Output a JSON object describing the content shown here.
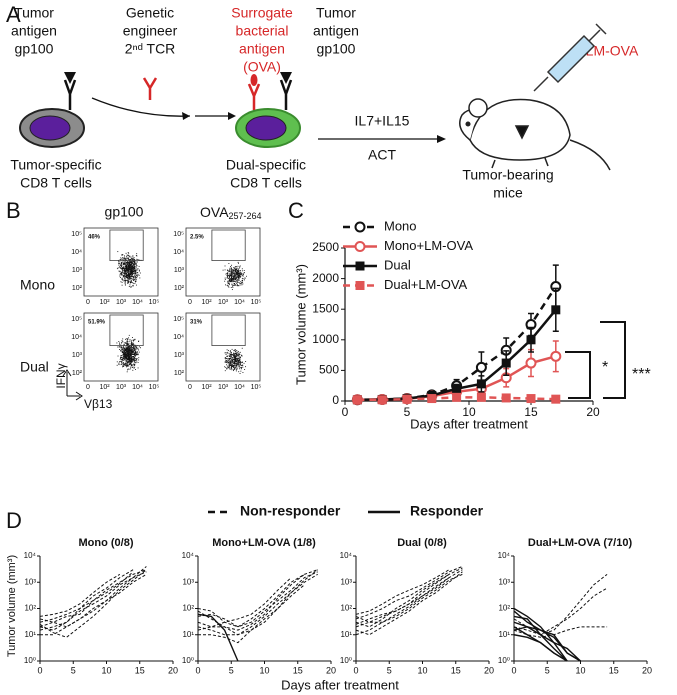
{
  "panel_labels": [
    "A",
    "B",
    "C",
    "D"
  ],
  "diagram": {
    "left_antigen": [
      "Tumor",
      "antigen",
      "gp100"
    ],
    "engineer": [
      "Genetic",
      "engineer",
      "2ⁿᵈ TCR"
    ],
    "surrogate": [
      "Surrogate",
      "bacterial",
      "antigen",
      "(OVA)"
    ],
    "right_antigen": [
      "Tumor",
      "antigen",
      "gp100"
    ],
    "injection": "LM-OVA",
    "cytokines": "IL7+IL15",
    "transfer": "ACT",
    "left_cell": [
      "Tumor-specific",
      "CD8 T cells"
    ],
    "right_cell": [
      "Dual-specific",
      "CD8 T cells"
    ],
    "host": [
      "Tumor-bearing",
      "mice"
    ]
  },
  "flow": {
    "columns": [
      "gp100",
      {
        "main": "OVA",
        "sub": "257-264"
      }
    ],
    "rows": [
      "Mono",
      "Dual"
    ],
    "percentages": [
      [
        "46%",
        "2.5%"
      ],
      [
        "51.9%",
        "31%"
      ]
    ],
    "y_label": "IFNγ",
    "x_label": "Vβ13",
    "yticks": [
      "10²",
      "10³",
      "10⁴",
      "10⁵"
    ],
    "xticks": [
      "0",
      "10²",
      "10³",
      "10⁴",
      "10⁵"
    ]
  },
  "responder_legend": [
    "Non-responder",
    "Responder"
  ],
  "d_axes": {
    "xlabel": "Days after treatment",
    "ylabel": "Tumor volume (mm³)"
  },
  "chart_data": [
    {
      "type": "line",
      "xlabel": "Days after treatment",
      "ylabel": "Tumor volume (mm³)",
      "x": [
        1,
        3,
        5,
        7,
        9,
        11,
        13,
        15,
        17
      ],
      "xlim": [
        0,
        20
      ],
      "xticks": [
        0,
        5,
        10,
        15,
        20
      ],
      "ylim": [
        0,
        2500
      ],
      "yticks": [
        0,
        500,
        1000,
        1500,
        2000,
        2500
      ],
      "annotations": [
        "*",
        "***"
      ],
      "series": [
        {
          "name": "Mono",
          "color": "#111111",
          "dashed": true,
          "marker": "open-circle",
          "values": [
            20,
            25,
            40,
            100,
            250,
            550,
            830,
            1250,
            1870
          ],
          "errors": [
            10,
            10,
            20,
            40,
            100,
            250,
            200,
            180,
            350
          ]
        },
        {
          "name": "Mono+LM-OVA",
          "color": "#e05555",
          "dashed": false,
          "marker": "open-circle",
          "values": [
            20,
            25,
            35,
            80,
            150,
            200,
            380,
            620,
            730
          ],
          "errors": [
            5,
            10,
            15,
            30,
            60,
            100,
            150,
            220,
            250
          ]
        },
        {
          "name": "Dual",
          "color": "#111111",
          "dashed": false,
          "marker": "square",
          "values": [
            20,
            25,
            40,
            90,
            200,
            280,
            620,
            1000,
            1490
          ],
          "errors": [
            5,
            10,
            20,
            40,
            70,
            130,
            200,
            200,
            350
          ]
        },
        {
          "name": "Dual+LM-OVA",
          "color": "#e05555",
          "dashed": true,
          "marker": "square",
          "values": [
            20,
            20,
            30,
            40,
            60,
            60,
            50,
            40,
            30
          ],
          "errors": [
            5,
            5,
            10,
            15,
            20,
            20,
            15,
            10,
            10
          ]
        }
      ]
    },
    {
      "type": "spaghetti",
      "title": "Mono (0/8)",
      "log_y": true,
      "x": [
        0,
        2,
        4,
        6,
        8,
        10,
        12,
        14,
        16
      ],
      "xlim": [
        0,
        20
      ],
      "xticks": [
        0,
        5,
        10,
        15,
        20
      ],
      "ylim": [
        1,
        10000
      ],
      "yticks": [
        {
          "value": 1,
          "label": "10⁰"
        },
        {
          "value": 10,
          "label": "10¹"
        },
        {
          "value": 100,
          "label": "10²"
        },
        {
          "value": 1000,
          "label": "10³"
        },
        {
          "value": 10000,
          "label": "10⁴"
        }
      ],
      "series": [
        {
          "responder": false,
          "values": [
            30,
            40,
            60,
            100,
            200,
            500,
            1000,
            2000,
            3000
          ]
        },
        {
          "responder": false,
          "values": [
            20,
            15,
            30,
            80,
            150,
            300,
            800,
            1500,
            4000
          ]
        },
        {
          "responder": false,
          "values": [
            10,
            10,
            20,
            40,
            100,
            200,
            400,
            1000,
            2000
          ]
        },
        {
          "responder": false,
          "values": [
            40,
            30,
            50,
            60,
            200,
            400,
            900,
            2500,
            null
          ]
        },
        {
          "responder": false,
          "values": [
            15,
            20,
            30,
            100,
            300,
            600,
            1500,
            3000,
            null
          ]
        },
        {
          "responder": false,
          "values": [
            25,
            12,
            8,
            20,
            50,
            150,
            500,
            1200,
            3000
          ]
        },
        {
          "responder": false,
          "values": [
            50,
            60,
            80,
            150,
            400,
            1000,
            2000,
            null,
            null
          ]
        },
        {
          "responder": false,
          "values": [
            20,
            30,
            20,
            40,
            80,
            200,
            600,
            1500,
            2500
          ]
        }
      ]
    },
    {
      "type": "spaghetti",
      "title": "Mono+LM-OVA (1/8)",
      "log_y": true,
      "x": [
        0,
        2,
        4,
        6,
        8,
        10,
        12,
        14,
        16,
        18
      ],
      "xlim": [
        0,
        20
      ],
      "xticks": [
        0,
        5,
        10,
        15,
        20
      ],
      "ylim": [
        1,
        10000
      ],
      "yticks": [
        {
          "value": 1,
          "label": "10⁰"
        },
        {
          "value": 10,
          "label": "10¹"
        },
        {
          "value": 100,
          "label": "10²"
        },
        {
          "value": 1000,
          "label": "10³"
        },
        {
          "value": 10000,
          "label": "10⁴"
        }
      ],
      "series": [
        {
          "responder": true,
          "values": [
            60,
            50,
            15,
            1,
            null,
            null,
            null,
            null,
            null,
            null
          ]
        },
        {
          "responder": false,
          "values": [
            100,
            80,
            30,
            20,
            40,
            100,
            300,
            1000,
            2000,
            3000
          ]
        },
        {
          "responder": false,
          "values": [
            50,
            60,
            40,
            20,
            30,
            80,
            200,
            500,
            1500,
            2500
          ]
        },
        {
          "responder": false,
          "values": [
            20,
            15,
            10,
            10,
            20,
            50,
            150,
            400,
            1000,
            2000
          ]
        },
        {
          "responder": false,
          "values": [
            10,
            10,
            8,
            5,
            15,
            40,
            100,
            300,
            800,
            null
          ]
        },
        {
          "responder": false,
          "values": [
            30,
            20,
            20,
            15,
            25,
            60,
            250,
            800,
            2000,
            null
          ]
        },
        {
          "responder": false,
          "values": [
            80,
            40,
            20,
            10,
            15,
            30,
            100,
            400,
            1200,
            3000
          ]
        },
        {
          "responder": false,
          "values": [
            15,
            20,
            30,
            40,
            60,
            150,
            500,
            1500,
            null,
            null
          ]
        }
      ]
    },
    {
      "type": "spaghetti",
      "title": "Dual (0/8)",
      "log_y": true,
      "x": [
        0,
        2,
        4,
        6,
        8,
        10,
        12,
        14,
        16
      ],
      "xlim": [
        0,
        20
      ],
      "xticks": [
        0,
        5,
        10,
        15,
        20
      ],
      "ylim": [
        1,
        10000
      ],
      "yticks": [
        {
          "value": 1,
          "label": "10⁰"
        },
        {
          "value": 10,
          "label": "10¹"
        },
        {
          "value": 100,
          "label": "10²"
        },
        {
          "value": 1000,
          "label": "10³"
        },
        {
          "value": 10000,
          "label": "10⁴"
        }
      ],
      "series": [
        {
          "responder": false,
          "values": [
            20,
            30,
            50,
            80,
            150,
            300,
            700,
            1500,
            3000
          ]
        },
        {
          "responder": false,
          "values": [
            40,
            60,
            100,
            200,
            300,
            600,
            1200,
            2500,
            4000
          ]
        },
        {
          "responder": false,
          "values": [
            10,
            15,
            30,
            50,
            100,
            250,
            500,
            1200,
            2000
          ]
        },
        {
          "responder": false,
          "values": [
            30,
            20,
            40,
            100,
            200,
            500,
            1000,
            2000,
            null
          ]
        },
        {
          "responder": false,
          "values": [
            60,
            80,
            150,
            300,
            500,
            800,
            1500,
            3000,
            null
          ]
        },
        {
          "responder": false,
          "values": [
            15,
            10,
            20,
            40,
            80,
            200,
            400,
            1000,
            2500
          ]
        },
        {
          "responder": false,
          "values": [
            25,
            40,
            60,
            80,
            150,
            400,
            900,
            2000,
            3500
          ]
        },
        {
          "responder": false,
          "values": [
            50,
            30,
            30,
            60,
            120,
            300,
            600,
            1500,
            null
          ]
        }
      ]
    },
    {
      "type": "spaghetti",
      "title": "Dual+LM-OVA (7/10)",
      "log_y": true,
      "x": [
        0,
        2,
        4,
        6,
        8,
        10,
        12,
        14
      ],
      "xlim": [
        0,
        20
      ],
      "xticks": [
        0,
        5,
        10,
        15,
        20
      ],
      "ylim": [
        1,
        10000
      ],
      "yticks": [
        {
          "value": 1,
          "label": "10⁰"
        },
        {
          "value": 10,
          "label": "10¹"
        },
        {
          "value": 100,
          "label": "10²"
        },
        {
          "value": 1000,
          "label": "10³"
        },
        {
          "value": 10000,
          "label": "10⁴"
        }
      ],
      "series": [
        {
          "responder": true,
          "values": [
            100,
            50,
            20,
            5,
            1,
            null,
            null,
            null
          ]
        },
        {
          "responder": true,
          "values": [
            50,
            40,
            10,
            3,
            1,
            null,
            null,
            null
          ]
        },
        {
          "responder": true,
          "values": [
            30,
            20,
            15,
            10,
            2,
            1,
            null,
            null
          ]
        },
        {
          "responder": true,
          "values": [
            20,
            10,
            5,
            2,
            1,
            null,
            null,
            null
          ]
        },
        {
          "responder": true,
          "values": [
            15,
            20,
            10,
            5,
            3,
            1,
            null,
            null
          ]
        },
        {
          "responder": true,
          "values": [
            80,
            30,
            15,
            8,
            2,
            1,
            null,
            null
          ]
        },
        {
          "responder": true,
          "values": [
            10,
            8,
            5,
            2,
            1,
            null,
            null,
            null
          ]
        },
        {
          "responder": false,
          "values": [
            40,
            20,
            10,
            15,
            50,
            200,
            800,
            2000
          ]
        },
        {
          "responder": false,
          "values": [
            20,
            15,
            10,
            20,
            40,
            100,
            300,
            600
          ]
        },
        {
          "responder": false,
          "values": [
            15,
            10,
            8,
            10,
            15,
            20,
            20,
            20
          ]
        }
      ]
    }
  ]
}
